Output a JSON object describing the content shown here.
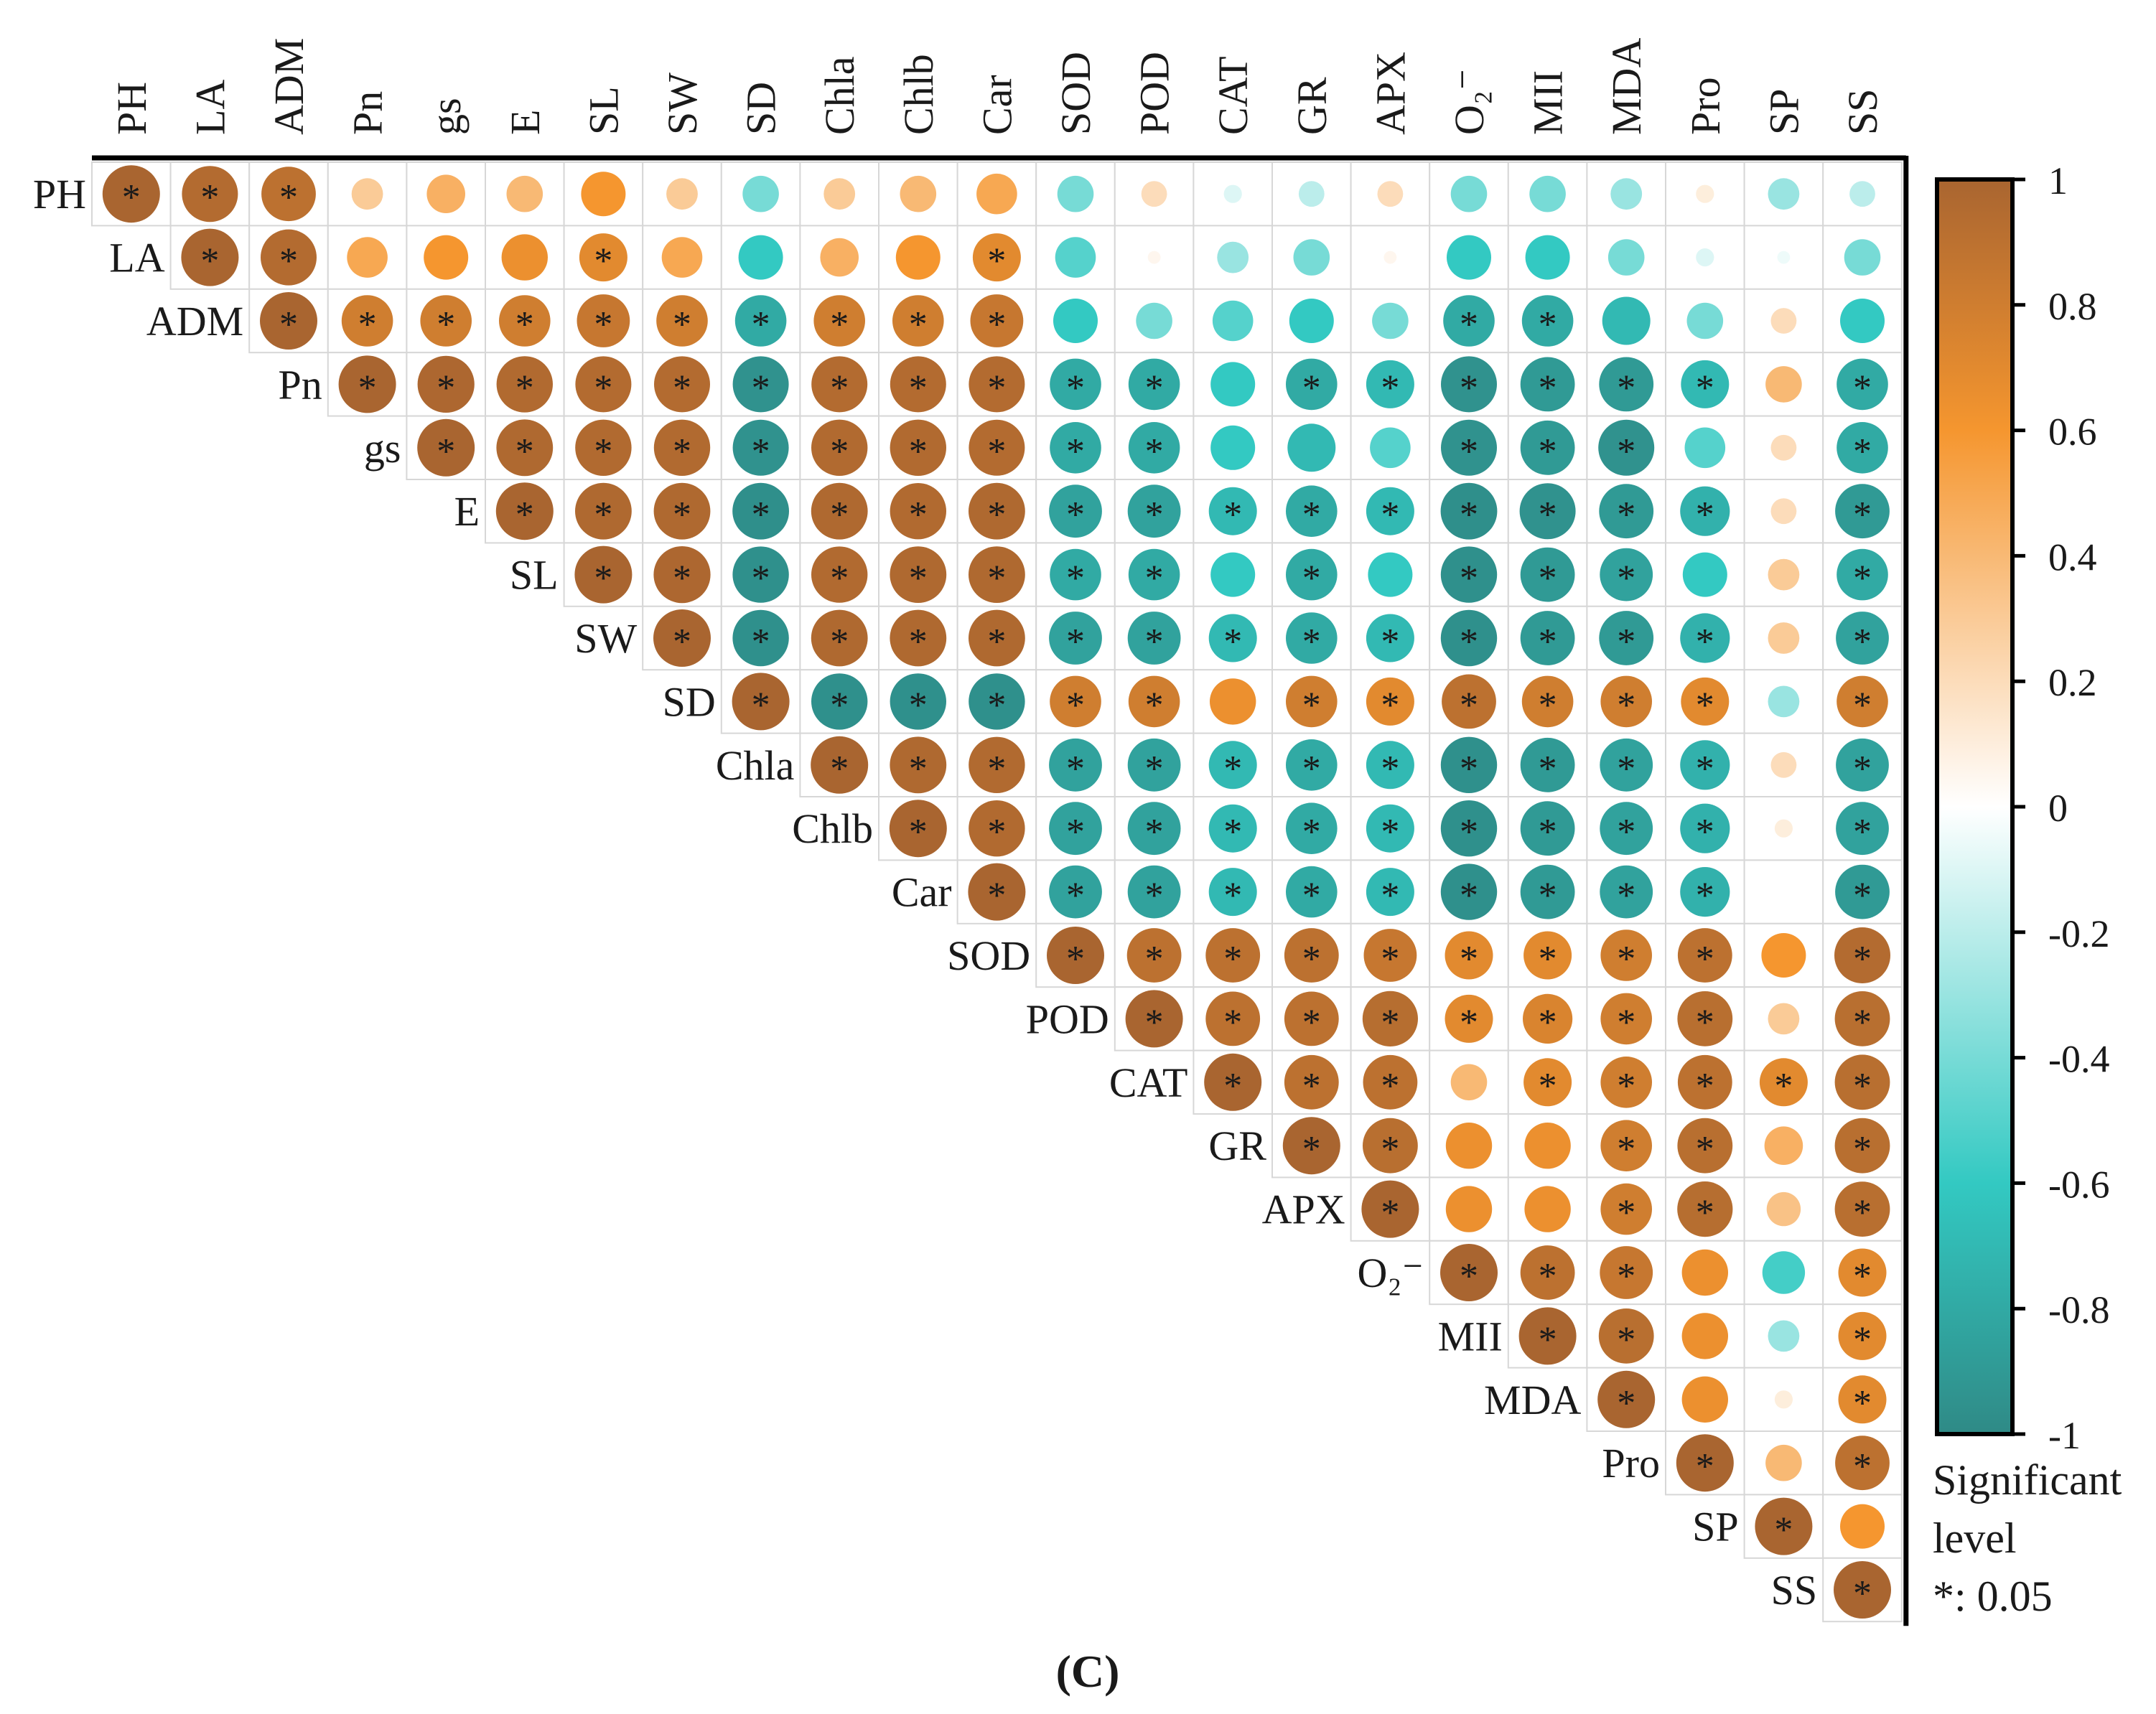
{
  "panel_label": "(C)",
  "colors": {
    "neg_strong": "#2f8a86",
    "neg_mid": "#33c9c2",
    "zero": "#ffffff",
    "pos_mid": "#f5962f",
    "pos_strong": "#a96530",
    "grid": "#d7d7d7",
    "axis": "#000000"
  },
  "colorbar": {
    "ticks": [
      "1",
      "0.8",
      "0.6",
      "0.4",
      "0.2",
      "0",
      "-0.2",
      "-0.4",
      "-0.6",
      "-0.8",
      "-1"
    ],
    "range": [
      -1,
      1
    ]
  },
  "significance_legend": {
    "line1": "Significant",
    "line2": "level",
    "line3": "*: 0.05",
    "marker": "*"
  },
  "chart_data": {
    "type": "heatmap",
    "subtype": "correlation-upper-triangle",
    "variables": [
      "PH",
      "LA",
      "ADM",
      "Pn",
      "gs",
      "E",
      "SL",
      "SW",
      "SD",
      "Chla",
      "Chlb",
      "Car",
      "SOD",
      "POD",
      "CAT",
      "GR",
      "APX",
      "O₂⁻",
      "MII",
      "MDA",
      "Pro",
      "SP",
      "SS"
    ],
    "matrix": [
      [
        1.0,
        0.95,
        0.9,
        0.3,
        0.45,
        0.4,
        0.6,
        0.3,
        -0.4,
        0.3,
        0.4,
        0.5,
        -0.4,
        0.2,
        -0.1,
        -0.2,
        0.2,
        -0.4,
        -0.4,
        -0.3,
        0.1,
        -0.3,
        -0.2
      ],
      [
        null,
        1.0,
        0.95,
        0.5,
        0.6,
        0.65,
        0.7,
        0.5,
        -0.6,
        0.45,
        0.6,
        0.7,
        -0.5,
        0.05,
        -0.3,
        -0.4,
        0.05,
        -0.6,
        -0.6,
        -0.4,
        -0.1,
        -0.05,
        -0.4
      ],
      [
        null,
        null,
        1.0,
        0.8,
        0.8,
        0.8,
        0.85,
        0.8,
        -0.8,
        0.8,
        0.8,
        0.85,
        -0.6,
        -0.4,
        -0.5,
        -0.6,
        -0.4,
        -0.8,
        -0.8,
        -0.7,
        -0.4,
        0.2,
        -0.6
      ],
      [
        null,
        null,
        null,
        1.0,
        0.98,
        0.96,
        0.95,
        0.95,
        -0.95,
        0.95,
        0.95,
        0.95,
        -0.8,
        -0.8,
        -0.6,
        -0.8,
        -0.7,
        -0.95,
        -0.9,
        -0.9,
        -0.7,
        0.4,
        -0.8
      ],
      [
        null,
        null,
        null,
        null,
        1.0,
        0.97,
        0.96,
        0.96,
        -0.95,
        0.96,
        0.96,
        0.95,
        -0.8,
        -0.8,
        -0.6,
        -0.7,
        -0.5,
        -0.95,
        -0.9,
        -0.95,
        -0.5,
        0.2,
        -0.8
      ],
      [
        null,
        null,
        null,
        null,
        null,
        1.0,
        0.97,
        0.97,
        -0.97,
        0.97,
        0.96,
        0.97,
        -0.85,
        -0.85,
        -0.7,
        -0.8,
        -0.7,
        -0.97,
        -0.95,
        -0.9,
        -0.75,
        0.2,
        -0.9
      ],
      [
        null,
        null,
        null,
        null,
        null,
        null,
        1.0,
        0.98,
        -0.96,
        0.96,
        0.97,
        0.97,
        -0.8,
        -0.8,
        -0.6,
        -0.8,
        -0.6,
        -0.96,
        -0.9,
        -0.85,
        -0.6,
        0.3,
        -0.8
      ],
      [
        null,
        null,
        null,
        null,
        null,
        null,
        null,
        1.0,
        -0.96,
        0.97,
        0.97,
        0.97,
        -0.85,
        -0.85,
        -0.7,
        -0.8,
        -0.7,
        -0.96,
        -0.9,
        -0.9,
        -0.75,
        0.3,
        -0.85
      ],
      [
        null,
        null,
        null,
        null,
        null,
        null,
        null,
        null,
        1.0,
        -0.96,
        -0.96,
        -0.96,
        0.8,
        0.8,
        0.65,
        0.8,
        0.7,
        0.9,
        0.8,
        0.8,
        0.7,
        -0.3,
        0.8
      ],
      [
        null,
        null,
        null,
        null,
        null,
        null,
        null,
        null,
        null,
        1.0,
        0.97,
        0.96,
        -0.85,
        -0.85,
        -0.7,
        -0.8,
        -0.7,
        -0.96,
        -0.9,
        -0.85,
        -0.75,
        0.2,
        -0.85
      ],
      [
        null,
        null,
        null,
        null,
        null,
        null,
        null,
        null,
        null,
        null,
        1.0,
        0.96,
        -0.85,
        -0.85,
        -0.7,
        -0.8,
        -0.7,
        -0.96,
        -0.9,
        -0.85,
        -0.75,
        0.1,
        -0.85
      ],
      [
        null,
        null,
        null,
        null,
        null,
        null,
        null,
        null,
        null,
        null,
        null,
        1.0,
        -0.85,
        -0.85,
        -0.7,
        -0.8,
        -0.7,
        -0.96,
        -0.9,
        -0.85,
        -0.75,
        0.0,
        -0.9
      ],
      [
        null,
        null,
        null,
        null,
        null,
        null,
        null,
        null,
        null,
        null,
        null,
        null,
        1.0,
        0.9,
        0.9,
        0.9,
        0.85,
        0.7,
        0.7,
        0.8,
        0.9,
        0.6,
        0.95
      ],
      [
        null,
        null,
        null,
        null,
        null,
        null,
        null,
        null,
        null,
        null,
        null,
        null,
        null,
        1.0,
        0.9,
        0.9,
        0.93,
        0.7,
        0.75,
        0.8,
        0.92,
        0.3,
        0.92
      ],
      [
        null,
        null,
        null,
        null,
        null,
        null,
        null,
        null,
        null,
        null,
        null,
        null,
        null,
        null,
        1.0,
        0.9,
        0.9,
        0.4,
        0.7,
        0.8,
        0.9,
        0.7,
        0.92
      ],
      [
        null,
        null,
        null,
        null,
        null,
        null,
        null,
        null,
        null,
        null,
        null,
        null,
        null,
        null,
        null,
        1.0,
        0.92,
        0.65,
        0.65,
        0.8,
        0.92,
        0.45,
        0.92
      ],
      [
        null,
        null,
        null,
        null,
        null,
        null,
        null,
        null,
        null,
        null,
        null,
        null,
        null,
        null,
        null,
        null,
        1.0,
        0.65,
        0.65,
        0.8,
        0.93,
        0.35,
        0.92
      ],
      [
        null,
        null,
        null,
        null,
        null,
        null,
        null,
        null,
        null,
        null,
        null,
        null,
        null,
        null,
        null,
        null,
        null,
        1.0,
        0.9,
        0.85,
        0.65,
        -0.55,
        0.7
      ],
      [
        null,
        null,
        null,
        null,
        null,
        null,
        null,
        null,
        null,
        null,
        null,
        null,
        null,
        null,
        null,
        null,
        null,
        null,
        1.0,
        0.92,
        0.65,
        -0.3,
        0.7
      ],
      [
        null,
        null,
        null,
        null,
        null,
        null,
        null,
        null,
        null,
        null,
        null,
        null,
        null,
        null,
        null,
        null,
        null,
        null,
        null,
        1.0,
        0.65,
        0.1,
        0.7
      ],
      [
        null,
        null,
        null,
        null,
        null,
        null,
        null,
        null,
        null,
        null,
        null,
        null,
        null,
        null,
        null,
        null,
        null,
        null,
        null,
        null,
        1.0,
        0.4,
        0.9
      ],
      [
        null,
        null,
        null,
        null,
        null,
        null,
        null,
        null,
        null,
        null,
        null,
        null,
        null,
        null,
        null,
        null,
        null,
        null,
        null,
        null,
        null,
        1.0,
        0.6
      ],
      [
        null,
        null,
        null,
        null,
        null,
        null,
        null,
        null,
        null,
        null,
        null,
        null,
        null,
        null,
        null,
        null,
        null,
        null,
        null,
        null,
        null,
        null,
        1.0
      ]
    ],
    "significant": [
      [
        1,
        1,
        1,
        0,
        0,
        0,
        0,
        0,
        0,
        0,
        0,
        0,
        0,
        0,
        0,
        0,
        0,
        0,
        0,
        0,
        0,
        0,
        0
      ],
      [
        0,
        1,
        1,
        0,
        0,
        0,
        1,
        0,
        0,
        0,
        0,
        1,
        0,
        0,
        0,
        0,
        0,
        0,
        0,
        0,
        0,
        0,
        0
      ],
      [
        0,
        0,
        1,
        1,
        1,
        1,
        1,
        1,
        1,
        1,
        1,
        1,
        0,
        0,
        0,
        0,
        0,
        1,
        1,
        0,
        0,
        0,
        0
      ],
      [
        0,
        0,
        0,
        1,
        1,
        1,
        1,
        1,
        1,
        1,
        1,
        1,
        1,
        1,
        0,
        1,
        1,
        1,
        1,
        1,
        1,
        0,
        1
      ],
      [
        0,
        0,
        0,
        0,
        1,
        1,
        1,
        1,
        1,
        1,
        1,
        1,
        1,
        1,
        0,
        0,
        0,
        1,
        1,
        1,
        0,
        0,
        1
      ],
      [
        0,
        0,
        0,
        0,
        0,
        1,
        1,
        1,
        1,
        1,
        1,
        1,
        1,
        1,
        1,
        1,
        1,
        1,
        1,
        1,
        1,
        0,
        1
      ],
      [
        0,
        0,
        0,
        0,
        0,
        0,
        1,
        1,
        1,
        1,
        1,
        1,
        1,
        1,
        0,
        1,
        0,
        1,
        1,
        1,
        0,
        0,
        1
      ],
      [
        0,
        0,
        0,
        0,
        0,
        0,
        0,
        1,
        1,
        1,
        1,
        1,
        1,
        1,
        1,
        1,
        1,
        1,
        1,
        1,
        1,
        0,
        1
      ],
      [
        0,
        0,
        0,
        0,
        0,
        0,
        0,
        0,
        1,
        1,
        1,
        1,
        1,
        1,
        0,
        1,
        1,
        1,
        1,
        1,
        1,
        0,
        1
      ],
      [
        0,
        0,
        0,
        0,
        0,
        0,
        0,
        0,
        0,
        1,
        1,
        1,
        1,
        1,
        1,
        1,
        1,
        1,
        1,
        1,
        1,
        0,
        1
      ],
      [
        0,
        0,
        0,
        0,
        0,
        0,
        0,
        0,
        0,
        0,
        1,
        1,
        1,
        1,
        1,
        1,
        1,
        1,
        1,
        1,
        1,
        0,
        1
      ],
      [
        0,
        0,
        0,
        0,
        0,
        0,
        0,
        0,
        0,
        0,
        0,
        1,
        1,
        1,
        1,
        1,
        1,
        1,
        1,
        1,
        1,
        0,
        1
      ],
      [
        0,
        0,
        0,
        0,
        0,
        0,
        0,
        0,
        0,
        0,
        0,
        0,
        1,
        1,
        1,
        1,
        1,
        1,
        1,
        1,
        1,
        0,
        1
      ],
      [
        0,
        0,
        0,
        0,
        0,
        0,
        0,
        0,
        0,
        0,
        0,
        0,
        0,
        1,
        1,
        1,
        1,
        1,
        1,
        1,
        1,
        0,
        1
      ],
      [
        0,
        0,
        0,
        0,
        0,
        0,
        0,
        0,
        0,
        0,
        0,
        0,
        0,
        0,
        1,
        1,
        1,
        0,
        1,
        1,
        1,
        1,
        1
      ],
      [
        0,
        0,
        0,
        0,
        0,
        0,
        0,
        0,
        0,
        0,
        0,
        0,
        0,
        0,
        0,
        1,
        1,
        0,
        0,
        1,
        1,
        0,
        1
      ],
      [
        0,
        0,
        0,
        0,
        0,
        0,
        0,
        0,
        0,
        0,
        0,
        0,
        0,
        0,
        0,
        0,
        1,
        0,
        0,
        1,
        1,
        0,
        1
      ],
      [
        0,
        0,
        0,
        0,
        0,
        0,
        0,
        0,
        0,
        0,
        0,
        0,
        0,
        0,
        0,
        0,
        0,
        1,
        1,
        1,
        0,
        0,
        1
      ],
      [
        0,
        0,
        0,
        0,
        0,
        0,
        0,
        0,
        0,
        0,
        0,
        0,
        0,
        0,
        0,
        0,
        0,
        0,
        1,
        1,
        0,
        0,
        1
      ],
      [
        0,
        0,
        0,
        0,
        0,
        0,
        0,
        0,
        0,
        0,
        0,
        0,
        0,
        0,
        0,
        0,
        0,
        0,
        0,
        1,
        0,
        0,
        1
      ],
      [
        0,
        0,
        0,
        0,
        0,
        0,
        0,
        0,
        0,
        0,
        0,
        0,
        0,
        0,
        0,
        0,
        0,
        0,
        0,
        0,
        1,
        0,
        1
      ],
      [
        0,
        0,
        0,
        0,
        0,
        0,
        0,
        0,
        0,
        0,
        0,
        0,
        0,
        0,
        0,
        0,
        0,
        0,
        0,
        0,
        0,
        1,
        0
      ],
      [
        0,
        0,
        0,
        0,
        0,
        0,
        0,
        0,
        0,
        0,
        0,
        0,
        0,
        0,
        0,
        0,
        0,
        0,
        0,
        0,
        0,
        0,
        1
      ]
    ]
  }
}
